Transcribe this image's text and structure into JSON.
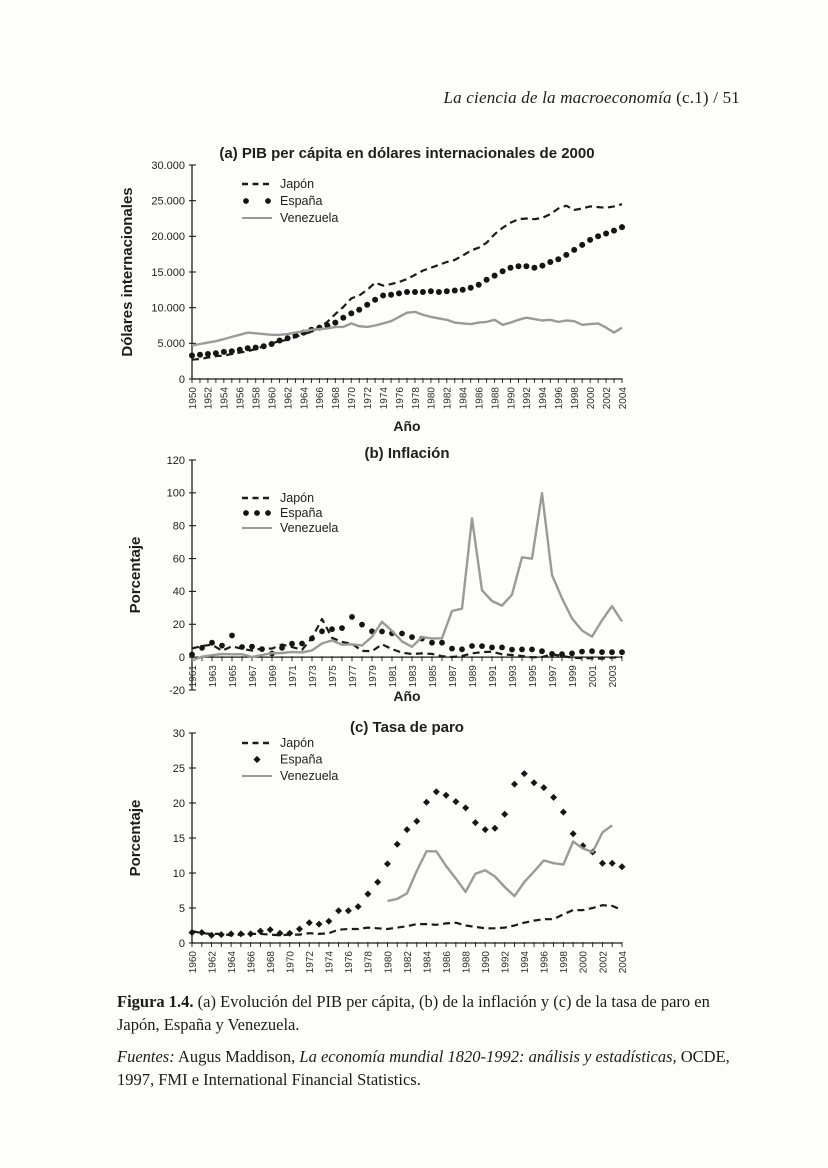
{
  "page": {
    "header_italic": "La ciencia de la macroeconomía",
    "header_roman": " (c.1) / 51"
  },
  "caption": {
    "figure_label": "Figura 1.4.",
    "figure_text": " (a) Evolución del PIB per cápita, (b) de la inflación y (c) de la tasa de paro en Japón, España y Venezuela.",
    "sources_label": "Fuentes:",
    "sources_pre": " Augus Maddison, ",
    "sources_italic": "La economía mundial 1820-1992: análisis y estadísticas,",
    "sources_post": " OCDE, 1997, FMI e International Financial Statistics."
  },
  "colors": {
    "ink": "#1b1b1b",
    "venezuela_gray": "#9a9a9a"
  },
  "chart_data": [
    {
      "type": "line",
      "title": "(a) PIB per cápita en dólares internacionales de 2000",
      "xlabel": "Año",
      "ylabel": "Dólares internacionales",
      "ylim": [
        0,
        30000
      ],
      "yticks": [
        0,
        5000,
        10000,
        15000,
        20000,
        25000,
        30000
      ],
      "ytick_labels": [
        "0",
        "5.000",
        "10.000",
        "15.000",
        "20.000",
        "25.000",
        "30.000"
      ],
      "xlim": [
        1950,
        2004
      ],
      "xtick_first": 1950,
      "xtick_label_step": 2,
      "baseline": 0,
      "legend_position": "inside-top-left",
      "series": [
        {
          "name": "Japón",
          "style": "dashed",
          "color": "#1b1b1b",
          "x0": 1950,
          "values": [
            2700,
            2800,
            3000,
            3200,
            3300,
            3500,
            3700,
            3900,
            4200,
            4600,
            5000,
            5300,
            5500,
            5900,
            6300,
            6600,
            7200,
            8000,
            9100,
            10100,
            11300,
            11700,
            12500,
            13500,
            13100,
            13300,
            13600,
            14000,
            14600,
            15200,
            15600,
            16000,
            16400,
            16700,
            17300,
            18000,
            18400,
            19100,
            20300,
            21200,
            21900,
            22400,
            22500,
            22400,
            22600,
            23100,
            23900,
            24300,
            23700,
            23900,
            24200,
            24100,
            24000,
            24200,
            24500
          ]
        },
        {
          "name": "España",
          "style": "dots",
          "color": "#151515",
          "x0": 1950,
          "values": [
            3300,
            3400,
            3500,
            3600,
            3800,
            3900,
            4100,
            4300,
            4400,
            4600,
            4900,
            5400,
            5700,
            6100,
            6500,
            6900,
            7200,
            7500,
            7900,
            8600,
            9200,
            9700,
            10400,
            11100,
            11700,
            11800,
            12000,
            12200,
            12200,
            12200,
            12300,
            12200,
            12300,
            12400,
            12500,
            12800,
            13200,
            13900,
            14500,
            15100,
            15600,
            15800,
            15800,
            15600,
            15900,
            16400,
            16800,
            17400,
            18100,
            18800,
            19500,
            20000,
            20400,
            20800,
            21300
          ]
        },
        {
          "name": "Venezuela",
          "style": "solid",
          "color": "#9a9a9a",
          "x0": 1950,
          "values": [
            4700,
            4900,
            5100,
            5300,
            5600,
            5900,
            6200,
            6500,
            6400,
            6300,
            6200,
            6200,
            6300,
            6500,
            6700,
            6900,
            7000,
            7100,
            7300,
            7300,
            7800,
            7400,
            7300,
            7500,
            7800,
            8100,
            8700,
            9300,
            9400,
            9000,
            8700,
            8500,
            8300,
            7900,
            7800,
            7700,
            7900,
            8000,
            8300,
            7600,
            7900,
            8300,
            8600,
            8400,
            8200,
            8300,
            8000,
            8200,
            8100,
            7600,
            7700,
            7800,
            7200,
            6500,
            7200
          ]
        }
      ]
    },
    {
      "type": "line",
      "title": "(b) Inflación",
      "xlabel": "Año",
      "ylabel": "Porcentaje",
      "ylim": [
        -20,
        120
      ],
      "yticks": [
        -20,
        0,
        20,
        40,
        60,
        80,
        100,
        120
      ],
      "ytick_labels": [
        "-20",
        "0",
        "20",
        "40",
        "60",
        "80",
        "100",
        "120"
      ],
      "xlim": [
        1961,
        2004
      ],
      "xtick_first": 1961,
      "xtick_label_step": 2,
      "baseline": 0,
      "legend_position": "inside-top-left",
      "series": [
        {
          "name": "Japón",
          "style": "dashed",
          "color": "#1b1b1b",
          "x0": 1961,
          "values": [
            5.3,
            6.8,
            7.6,
            3.9,
            6.6,
            5.1,
            4.0,
            5.3,
            5.2,
            7.7,
            6.1,
            4.5,
            11.7,
            23.2,
            11.8,
            9.3,
            8.1,
            3.8,
            3.6,
            7.8,
            4.9,
            2.7,
            1.9,
            2.3,
            2.0,
            0.6,
            0.1,
            0.7,
            2.3,
            3.1,
            3.3,
            1.7,
            1.3,
            0.7,
            -0.1,
            0.1,
            1.7,
            0.7,
            -0.3,
            -0.7,
            -0.7,
            -0.9,
            -0.3,
            0.0
          ]
        },
        {
          "name": "España",
          "style": "dots",
          "color": "#151515",
          "x0": 1961,
          "values": [
            1.6,
            5.7,
            8.8,
            7.0,
            13.2,
            6.2,
            6.4,
            4.9,
            2.2,
            5.7,
            8.2,
            8.3,
            11.4,
            15.7,
            17.0,
            17.7,
            24.5,
            19.8,
            15.7,
            15.6,
            14.5,
            14.4,
            12.2,
            11.3,
            8.8,
            8.8,
            5.2,
            4.8,
            6.8,
            6.7,
            5.9,
            5.9,
            4.6,
            4.7,
            4.7,
            3.6,
            2.0,
            1.8,
            2.3,
            3.4,
            3.6,
            3.1,
            3.0,
            3.0
          ]
        },
        {
          "name": "Venezuela",
          "style": "solid",
          "color": "#9a9a9a",
          "x0": 1961,
          "values": [
            -2.0,
            0.3,
            1.2,
            1.9,
            1.7,
            1.8,
            0.1,
            1.3,
            2.4,
            2.5,
            3.2,
            2.9,
            4.1,
            8.3,
            10.2,
            7.6,
            7.8,
            7.1,
            12.4,
            21.5,
            16.0,
            9.6,
            6.3,
            12.2,
            11.4,
            11.5,
            28.1,
            29.5,
            84.5,
            40.7,
            34.2,
            31.4,
            38.1,
            60.8,
            59.9,
            99.9,
            50.0,
            35.8,
            23.6,
            16.2,
            12.5,
            22.4,
            31.1,
            21.7
          ]
        }
      ]
    },
    {
      "type": "line",
      "title": "(c) Tasa de paro",
      "xlabel": "",
      "ylabel": "Porcentaje",
      "ylim": [
        0,
        30
      ],
      "yticks": [
        0,
        5,
        10,
        15,
        20,
        25,
        30
      ],
      "ytick_labels": [
        "0",
        "5",
        "10",
        "15",
        "20",
        "25",
        "30"
      ],
      "xlim": [
        1960,
        2004
      ],
      "xtick_first": 1960,
      "xtick_label_step": 2,
      "baseline": 0,
      "legend_position": "inside-top-left",
      "series": [
        {
          "name": "Japón",
          "style": "dashed",
          "color": "#1b1b1b",
          "x0": 1960,
          "values": [
            1.7,
            1.4,
            1.3,
            1.3,
            1.1,
            1.2,
            1.3,
            1.3,
            1.2,
            1.1,
            1.2,
            1.2,
            1.4,
            1.3,
            1.4,
            1.9,
            2.0,
            2.0,
            2.2,
            2.1,
            2.0,
            2.2,
            2.4,
            2.7,
            2.7,
            2.6,
            2.8,
            2.9,
            2.5,
            2.3,
            2.1,
            2.1,
            2.2,
            2.5,
            2.9,
            3.2,
            3.4,
            3.4,
            4.1,
            4.7,
            4.7,
            5.0,
            5.4,
            5.3,
            4.7
          ]
        },
        {
          "name": "España",
          "style": "diamonds",
          "color": "#151515",
          "x0": 1960,
          "values": [
            1.5,
            1.5,
            1.1,
            1.2,
            1.3,
            1.3,
            1.3,
            1.7,
            1.9,
            1.4,
            1.4,
            2.0,
            2.9,
            2.7,
            3.1,
            4.6,
            4.6,
            5.2,
            7.0,
            8.7,
            11.3,
            14.1,
            16.2,
            17.4,
            20.1,
            21.6,
            21.1,
            20.2,
            19.3,
            17.2,
            16.2,
            16.4,
            18.4,
            22.7,
            24.2,
            22.9,
            22.2,
            20.8,
            18.7,
            15.6,
            13.9,
            13.0,
            11.4,
            11.4,
            10.9
          ]
        },
        {
          "name": "Venezuela",
          "style": "solid",
          "color": "#9a9a9a",
          "x0": 1980,
          "values": [
            6.0,
            6.3,
            7.1,
            10.3,
            13.1,
            13.1,
            11.0,
            9.2,
            7.3,
            9.9,
            10.4,
            9.5,
            8.0,
            6.7,
            8.7,
            10.2,
            11.8,
            11.4,
            11.2,
            14.5,
            13.5,
            13.0,
            15.8,
            16.8
          ]
        }
      ]
    }
  ]
}
